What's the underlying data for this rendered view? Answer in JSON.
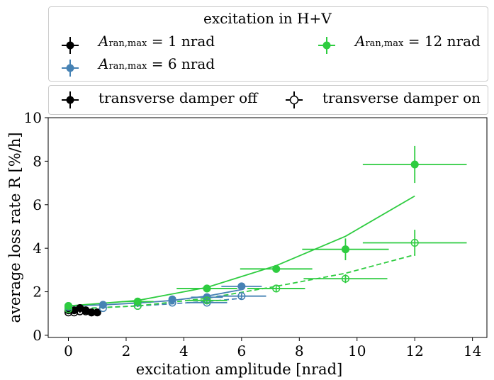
{
  "chart_data": {
    "type": "scatter",
    "title": "",
    "xlabel": "excitation amplitude [nrad]",
    "ylabel": "average loss rate R [%/h]",
    "xlim": [
      -0.7,
      14.5
    ],
    "ylim": [
      -0.1,
      10
    ],
    "xticks": [
      "0",
      "2",
      "4",
      "6",
      "8",
      "10",
      "12",
      "14"
    ],
    "yticks": [
      "0",
      "2",
      "4",
      "6",
      "8",
      "10"
    ],
    "xtick_values": [
      0,
      2,
      4,
      6,
      8,
      10,
      12,
      14
    ],
    "ytick_values": [
      0,
      2,
      4,
      6,
      8,
      10
    ],
    "legend_color": {
      "title": "excitation in H+V",
      "placement": "above plot",
      "entries": [
        {
          "label": "1",
          "color": "#000000"
        },
        {
          "label": "12",
          "color": "#2ecc40"
        },
        {
          "label": "6",
          "color": "#4682b4"
        }
      ]
    },
    "legend_style": {
      "placement": "above plot",
      "entries": [
        {
          "label": "transverse damper off",
          "filled": true
        },
        {
          "label": "transverse damper on",
          "filled": false
        }
      ]
    },
    "series": [
      {
        "name": "A_ran,max = 1 nrad, damper off",
        "color": "#000000",
        "filled": true,
        "x": [
          0.0,
          0.2,
          0.4,
          0.6,
          0.8,
          1.0
        ],
        "y": [
          1.15,
          1.15,
          1.25,
          1.15,
          1.05,
          1.05
        ],
        "xerr": [
          0,
          0,
          0,
          0,
          0,
          0
        ],
        "yerr": [
          0.08,
          0.08,
          0.08,
          0.08,
          0.08,
          0.08
        ]
      },
      {
        "name": "A_ran,max = 1 nrad, damper on",
        "color": "#000000",
        "filled": false,
        "x": [
          0.0,
          0.2,
          0.4,
          0.6,
          0.8
        ],
        "y": [
          1.05,
          1.05,
          1.1,
          1.1,
          1.05
        ],
        "xerr": [
          0,
          0,
          0,
          0,
          0
        ],
        "yerr": [
          0.08,
          0.08,
          0.08,
          0.08,
          0.08
        ]
      },
      {
        "name": "A_ran,max = 6 nrad, damper off",
        "color": "#4682b4",
        "filled": true,
        "x": [
          0.0,
          1.2,
          2.4,
          3.6,
          4.8,
          6.0
        ],
        "y": [
          1.35,
          1.4,
          1.5,
          1.65,
          1.75,
          2.25
        ],
        "xerr": [
          0,
          0,
          0,
          0,
          0.55,
          0.7
        ],
        "yerr": [
          0.05,
          0.05,
          0.05,
          0.08,
          0.08,
          0.15
        ],
        "fit": {
          "x": [
            0.0,
            1.2,
            2.4,
            3.6,
            4.8,
            6.0
          ],
          "y": [
            1.35,
            1.4,
            1.48,
            1.6,
            1.8,
            2.1
          ],
          "dash": false
        }
      },
      {
        "name": "A_ran,max = 6 nrad, damper on",
        "color": "#4682b4",
        "filled": false,
        "x": [
          0.0,
          1.2,
          2.4,
          3.6,
          4.8,
          6.0
        ],
        "y": [
          1.3,
          1.25,
          1.35,
          1.5,
          1.5,
          1.8
        ],
        "xerr": [
          0,
          0,
          0,
          0,
          0.7,
          0.85
        ],
        "yerr": [
          0.05,
          0.05,
          0.05,
          0.08,
          0.08,
          0.12
        ],
        "fit": {
          "x": [
            0.0,
            1.2,
            2.4,
            3.6,
            4.8,
            6.0
          ],
          "y": [
            1.2,
            1.28,
            1.35,
            1.45,
            1.55,
            1.7
          ],
          "dash": true
        }
      },
      {
        "name": "A_ran,max = 12 nrad, damper off",
        "color": "#2ecc40",
        "filled": true,
        "x": [
          0.0,
          2.4,
          4.8,
          7.2,
          9.6,
          12.0
        ],
        "y": [
          1.35,
          1.55,
          2.15,
          3.05,
          3.95,
          7.85
        ],
        "xerr": [
          0,
          0.55,
          1.05,
          1.25,
          1.5,
          1.8
        ],
        "yerr": [
          0.05,
          0.08,
          0.15,
          0.15,
          0.5,
          0.85
        ],
        "fit": {
          "x": [
            0.0,
            2.4,
            4.8,
            7.2,
            9.6,
            12.0
          ],
          "y": [
            1.35,
            1.6,
            2.2,
            3.2,
            4.55,
            6.4
          ],
          "dash": false
        }
      },
      {
        "name": "A_ran,max = 12 nrad, damper on",
        "color": "#2ecc40",
        "filled": false,
        "x": [
          0.0,
          2.4,
          4.8,
          7.2,
          9.6,
          12.0
        ],
        "y": [
          1.2,
          1.35,
          1.6,
          2.15,
          2.6,
          4.25
        ],
        "xerr": [
          0,
          0,
          0.7,
          1.0,
          1.45,
          1.8
        ],
        "yerr": [
          0.05,
          0.05,
          0.1,
          0.15,
          0.2,
          0.6
        ],
        "fit": {
          "x": [
            0.0,
            2.4,
            4.8,
            7.2,
            9.6,
            12.0
          ],
          "y": [
            1.2,
            1.35,
            1.7,
            2.25,
            2.85,
            3.7
          ],
          "dash": true
        }
      }
    ]
  }
}
